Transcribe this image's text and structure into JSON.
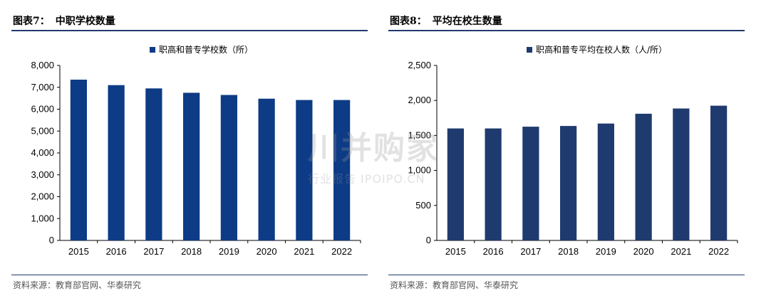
{
  "panels": [
    {
      "title_label": "图表7：",
      "title_text": "中职学校数量",
      "source": "资料来源：教育部官网、华泰研究",
      "chart_data": {
        "type": "bar",
        "categories": [
          "2015",
          "2016",
          "2017",
          "2018",
          "2019",
          "2020",
          "2021",
          "2022"
        ],
        "series": [
          {
            "name": "职高和普专学校数（所）",
            "values": [
              7350,
              7100,
              6950,
              6750,
              6650,
              6480,
              6420,
              6420
            ],
            "color": "#0d3b85"
          }
        ],
        "ylim": [
          0,
          8000
        ],
        "yticks": [
          0,
          1000,
          2000,
          3000,
          4000,
          5000,
          6000,
          7000,
          8000
        ],
        "ytick_labels": [
          "0",
          "1,000",
          "2,000",
          "3,000",
          "4,000",
          "5,000",
          "6,000",
          "7,000",
          "8,000"
        ],
        "legend": "top-center",
        "grid": false
      }
    },
    {
      "title_label": "图表8：",
      "title_text": "平均在校生数量",
      "source": "资料来源：教育部官网、华泰研究",
      "chart_data": {
        "type": "bar",
        "categories": [
          "2015",
          "2016",
          "2017",
          "2018",
          "2019",
          "2020",
          "2021",
          "2022"
        ],
        "series": [
          {
            "name": "职高和普专平均在校人数（人/所）",
            "values": [
              1600,
              1600,
              1625,
              1635,
              1670,
              1810,
              1885,
              1925
            ],
            "color": "#1f3a6e"
          }
        ],
        "ylim": [
          0,
          2500
        ],
        "yticks": [
          0,
          500,
          1000,
          1500,
          2000,
          2500
        ],
        "ytick_labels": [
          "0",
          "500",
          "1,000",
          "1,500",
          "2,000",
          "2,500"
        ],
        "legend": "top-center",
        "grid": false
      }
    }
  ],
  "watermark": {
    "main": "川并购家",
    "sub": "行业报告 IPOIPO.CN"
  }
}
